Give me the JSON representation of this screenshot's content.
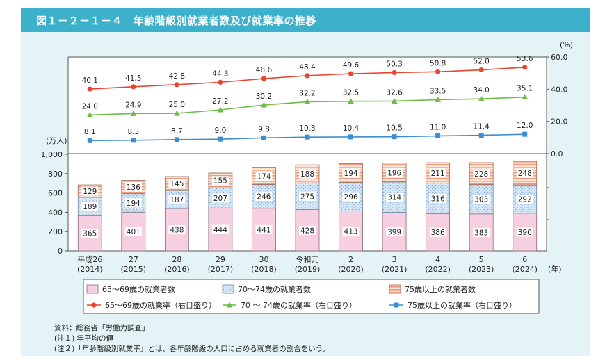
{
  "title": "図１－２－１－４　年齢階級別就業者数及び就業率の推移",
  "chart_data": {
    "type": "bar",
    "stacked": true,
    "categories": [
      {
        "era": "平成26",
        "year": "(2014)"
      },
      {
        "era": "27",
        "year": "(2015)"
      },
      {
        "era": "28",
        "year": "(2016)"
      },
      {
        "era": "29",
        "year": "(2017)"
      },
      {
        "era": "30",
        "year": "(2018)"
      },
      {
        "era": "令和元",
        "year": "(2019)"
      },
      {
        "era": "2",
        "year": "(2020)"
      },
      {
        "era": "3",
        "year": "(2021)"
      },
      {
        "era": "4",
        "year": "(2022)"
      },
      {
        "era": "5",
        "year": "(2023)"
      },
      {
        "era": "6",
        "year": "(2024)"
      }
    ],
    "x_unit": "(年)",
    "left_axis": {
      "unit": "(万人)",
      "ylim": [
        0,
        1000
      ],
      "ticks": [
        "0",
        "200",
        "400",
        "600",
        "800",
        "1,000"
      ]
    },
    "right_axis": {
      "unit": "(%)",
      "ylim": [
        0,
        60
      ],
      "ticks": [
        "0.0",
        "20.0",
        "40.0",
        "60.0"
      ]
    },
    "bar_series": [
      {
        "name": "65～69歳の就業者数",
        "color": "#f6cfe0",
        "values": [
          365,
          401,
          438,
          444,
          441,
          428,
          413,
          399,
          386,
          383,
          390
        ]
      },
      {
        "name": "70～74歳の就業者数",
        "color": "#cfe3f4",
        "values": [
          189,
          194,
          187,
          207,
          246,
          275,
          296,
          314,
          316,
          303,
          292
        ]
      },
      {
        "name": "75歳以上の就業者数",
        "color": "#f8d6c6",
        "values": [
          129,
          136,
          145,
          155,
          174,
          188,
          194,
          196,
          211,
          228,
          248
        ]
      }
    ],
    "line_series": [
      {
        "name": "65～69歳の就業率（右目盛り）",
        "color": "#e8452f",
        "marker": "circle",
        "values": [
          40.1,
          41.5,
          42.8,
          44.3,
          46.6,
          48.4,
          49.6,
          50.3,
          50.8,
          52.0,
          53.6
        ]
      },
      {
        "name": "70 ～ 74歳の就業率（右目盛り）",
        "color": "#6cbd45",
        "marker": "triangle",
        "values": [
          24.0,
          24.9,
          25.0,
          27.2,
          30.2,
          32.2,
          32.5,
          32.6,
          33.5,
          34.0,
          35.1
        ]
      },
      {
        "name": "75歳以上の就業率（右目盛り）",
        "color": "#3b8fcf",
        "marker": "square",
        "values": [
          8.1,
          8.3,
          8.7,
          9.0,
          9.8,
          10.3,
          10.4,
          10.5,
          11.0,
          11.4,
          12.0
        ]
      }
    ],
    "legend_position": "bottom"
  },
  "notes": [
    "資料：総務省「労働力調査」",
    "(注１) 年平均の値",
    "(注２)「年齢階級別就業率」とは、各年齢階級の人口に占める就業者の割合をいう。"
  ]
}
